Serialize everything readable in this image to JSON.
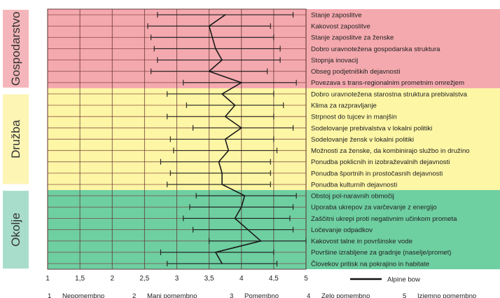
{
  "chart_data": {
    "type": "range_line",
    "xlim": [
      1,
      5
    ],
    "x_ticks": [
      "1",
      "1,5",
      "2",
      "2,5",
      "3",
      "3,5",
      "4",
      "4,5",
      "5"
    ],
    "legend": {
      "label": "Alpine bow",
      "position": "bottom-right"
    },
    "scale_note": {
      "items": [
        {
          "value": "1",
          "text": "Nepomembno"
        },
        {
          "value": "2",
          "text": "Manj pomembno"
        },
        {
          "value": "3",
          "text": "Pomembno"
        },
        {
          "value": "4",
          "text": "Zelo pomembno"
        },
        {
          "value": "5",
          "text": "Izjemno pomembno"
        }
      ]
    },
    "groups": [
      {
        "name": "Gospodarstvo",
        "color": "#f4a9ae",
        "label_bg": "#f4b6ba",
        "items": [
          {
            "label": "Stanje zaposlitve",
            "min": 2.7,
            "max": 4.8,
            "value": 3.75
          },
          {
            "label": "Kakovost zaposlitve",
            "min": 2.55,
            "max": 4.45,
            "value": 3.5
          },
          {
            "label": "Stanje zaposlitve za ženske",
            "min": 2.6,
            "max": 4.5,
            "value": 3.55
          },
          {
            "label": "Dobro uravnotežena gospodarska struktura",
            "min": 2.65,
            "max": 4.6,
            "value": 3.6
          },
          {
            "label": "Stopnja inovacij",
            "min": 2.7,
            "max": 4.6,
            "value": 3.7
          },
          {
            "label": "Obseg podjetniških dejavnosti",
            "min": 2.6,
            "max": 4.4,
            "value": 3.5
          },
          {
            "label": "Povezava s trans-regionalnim prometnim omrežjem",
            "min": 3.1,
            "max": 4.85,
            "value": 4.0
          }
        ]
      },
      {
        "name": "Družba",
        "color": "#fdf6a5",
        "label_bg": "#fcf5b4",
        "items": [
          {
            "label": "Dobro uravnotežena starostna struktura prebivalstva",
            "min": 2.85,
            "max": 4.5,
            "value": 3.7
          },
          {
            "label": "Klima za razpravljanje",
            "min": 3.15,
            "max": 4.65,
            "value": 3.9
          },
          {
            "label": "Strpnost do tujcev in manjšin",
            "min": 2.85,
            "max": 4.5,
            "value": 3.75
          },
          {
            "label": "Sodelovanje prebivalstva v lokalni politiki",
            "min": 3.25,
            "max": 4.8,
            "value": 4.0
          },
          {
            "label": "Sodelovanje žensk v lokalni politiki",
            "min": 2.9,
            "max": 4.5,
            "value": 3.75
          },
          {
            "label": "Možnosti za ženske, da kombinirajo službo in družino",
            "min": 2.95,
            "max": 4.55,
            "value": 3.8
          },
          {
            "label": "Ponudba poklicnih in izobraževalnih dejavnosti",
            "min": 2.75,
            "max": 4.45,
            "value": 3.65
          },
          {
            "label": "Ponudba športnih in prostočasnih dejavnosti",
            "min": 2.9,
            "max": 4.45,
            "value": 3.7
          },
          {
            "label": "Ponudba kulturnih dejavnosti",
            "min": 2.85,
            "max": 4.45,
            "value": 3.7
          }
        ]
      },
      {
        "name": "Okolje",
        "color": "#6ecfa1",
        "label_bg": "#a9ddcb",
        "items": [
          {
            "label": "Obstoj pol-naravnih območij",
            "min": 3.3,
            "max": 4.85,
            "value": 4.05
          },
          {
            "label": "Uporaba ukrepov za varčevanje z energijo",
            "min": 3.2,
            "max": 4.8,
            "value": 4.0
          },
          {
            "label": "Zaščitni ukrepi proti negativnim učinkom prometa",
            "min": 3.1,
            "max": 4.75,
            "value": 3.9
          },
          {
            "label": "Ločevanje odpadkov",
            "min": 3.25,
            "max": 4.8,
            "value": 4.1
          },
          {
            "label": "Kakovost talne in površinske vode",
            "min": 3.5,
            "max": 5.0,
            "value": 4.3
          },
          {
            "label": "Površine izrabljene za gradnje (naselje/promet)",
            "min": 2.75,
            "max": 4.5,
            "value": 3.6
          },
          {
            "label": "Človekov pritisk na pokrajino in habitate",
            "min": 2.85,
            "max": 4.55,
            "value": 3.7
          }
        ]
      }
    ]
  }
}
